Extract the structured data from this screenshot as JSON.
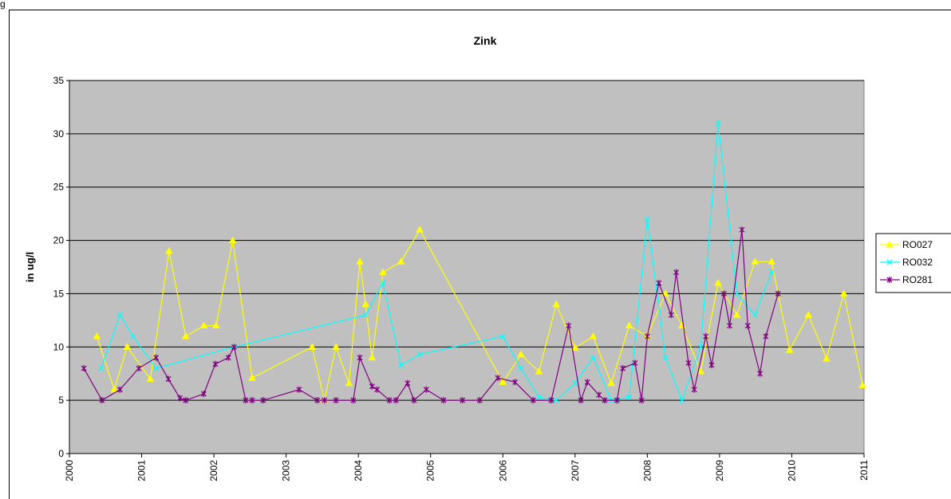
{
  "caption": "g",
  "chart_data": {
    "type": "line",
    "title": "Zink",
    "y_label": "in ug/l",
    "xlim": [
      2000,
      2011
    ],
    "xticks": [
      2000,
      2001,
      2002,
      2003,
      2004,
      2005,
      2006,
      2007,
      2008,
      2009,
      2010,
      2011
    ],
    "ylim": [
      0,
      35
    ],
    "yticks": [
      0,
      5,
      10,
      15,
      20,
      25,
      30,
      35
    ],
    "grid": true,
    "plot_background": "#c0c0c0",
    "legend": "right",
    "series": [
      {
        "name": "RO027",
        "color": "#ffff00",
        "marker": "triangle",
        "x": [
          2000.38,
          2000.62,
          2000.8,
          2001.12,
          2001.38,
          2001.61,
          2001.86,
          2002.03,
          2002.26,
          2002.53,
          2003.36,
          2003.53,
          2003.69,
          2003.87,
          2004.02,
          2004.1,
          2004.19,
          2004.34,
          2004.59,
          2004.85,
          2006.0,
          2006.25,
          2006.5,
          2006.74,
          2007.0,
          2007.25,
          2007.5,
          2007.75,
          2008.0,
          2008.25,
          2008.48,
          2008.74,
          2008.98,
          2009.24,
          2009.49,
          2009.72,
          2009.97,
          2010.23,
          2010.48,
          2010.72,
          2010.98
        ],
        "values": [
          11,
          6,
          10,
          7,
          19,
          11,
          12,
          12,
          20,
          7.1,
          10,
          5,
          10,
          6.6,
          18,
          14,
          9,
          17,
          18,
          21,
          6.7,
          9.3,
          7.7,
          14,
          9.9,
          11,
          6.6,
          12,
          11,
          15,
          12,
          7.7,
          16,
          13,
          18,
          18,
          9.7,
          13,
          8.9,
          15,
          6.4
        ]
      },
      {
        "name": "RO032",
        "color": "#00ffff",
        "marker": "x",
        "x": [
          2000.44,
          2000.7,
          2000.88,
          2001.2,
          2002.28,
          2004.1,
          2004.34,
          2004.59,
          2004.85,
          2006.0,
          2006.25,
          2006.5,
          2006.74,
          2007.0,
          2007.25,
          2007.5,
          2007.75,
          2008.0,
          2008.25,
          2008.48,
          2008.74,
          2008.98,
          2009.24,
          2009.49,
          2009.72
        ],
        "values": [
          8,
          13,
          11,
          8,
          10,
          13,
          16,
          8.3,
          9.3,
          11,
          8,
          5.3,
          5,
          6.6,
          9,
          5,
          5.3,
          22,
          9,
          5,
          10,
          31,
          15,
          13,
          17
        ]
      },
      {
        "name": "RO281",
        "color": "#800080",
        "marker": "asterisk",
        "x": [
          2000.2,
          2000.45,
          2000.7,
          2000.96,
          2001.2,
          2001.37,
          2001.53,
          2001.61,
          2001.86,
          2002.02,
          2002.2,
          2002.28,
          2002.44,
          2002.53,
          2002.68,
          2003.18,
          2003.43,
          2003.53,
          2003.69,
          2003.93,
          2004.02,
          2004.19,
          2004.26,
          2004.43,
          2004.52,
          2004.68,
          2004.77,
          2004.94,
          2005.18,
          2005.44,
          2005.68,
          2005.93,
          2006.17,
          2006.42,
          2006.67,
          2006.91,
          2007.08,
          2007.17,
          2007.33,
          2007.41,
          2007.58,
          2007.66,
          2007.83,
          2007.92,
          2008.0,
          2008.16,
          2008.33,
          2008.4,
          2008.57,
          2008.65,
          2008.81,
          2008.89,
          2009.06,
          2009.14,
          2009.31,
          2009.39,
          2009.56,
          2009.64,
          2009.81
        ],
        "values": [
          8,
          5,
          6,
          8,
          9,
          7,
          5.2,
          5,
          5.6,
          8.4,
          9,
          10,
          5,
          5,
          5,
          6,
          5,
          5,
          5,
          5,
          9,
          6.3,
          6,
          5,
          5,
          6.6,
          5,
          6,
          5,
          5,
          5,
          7.1,
          6.7,
          5,
          5,
          12,
          5,
          6.7,
          5.5,
          5,
          5,
          8,
          8.5,
          5,
          11,
          16,
          13,
          17,
          8.5,
          6,
          11,
          8.3,
          15,
          12,
          21,
          12,
          7.5,
          11,
          15
        ]
      }
    ]
  }
}
